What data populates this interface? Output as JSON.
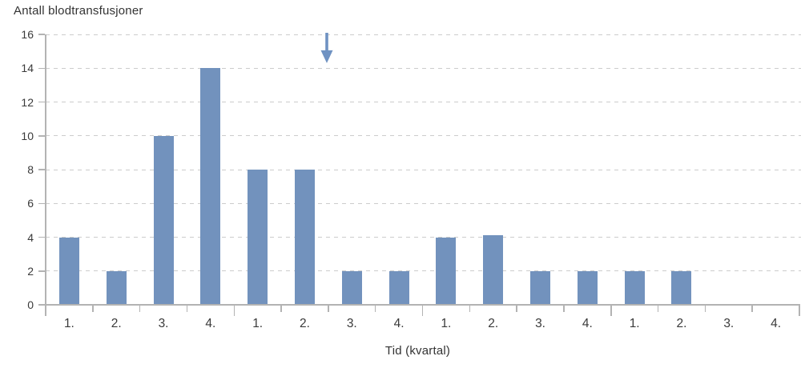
{
  "chart_data": {
    "type": "bar",
    "title": "Antall blodtransfusjoner",
    "xlabel": "Tid (kvartal)",
    "ylabel": "Antall blodtransfusjoner",
    "categories": [
      "1.",
      "2.",
      "3.",
      "4.",
      "1.",
      "2.",
      "3.",
      "4.",
      "1.",
      "2.",
      "3.",
      "4.",
      "1.",
      "2.",
      "3.",
      "4."
    ],
    "values": [
      4,
      2,
      10,
      14,
      8,
      8,
      2,
      2,
      4,
      4.1,
      2,
      2,
      2,
      2,
      null,
      null
    ],
    "ylim": [
      0,
      16
    ],
    "yticks": [
      0,
      2,
      4,
      6,
      8,
      10,
      12,
      14,
      16
    ],
    "grid": "horizontal-dashed",
    "legend_position": "none",
    "x_axis": {
      "boundary_tick_count": 17,
      "long_tick_every": 4,
      "note": "longer ticks mark year boundaries every 4 quarters"
    },
    "annotation": {
      "type": "down-arrow",
      "after_category_index": 6,
      "y_top_value": 16,
      "y_tip_value": 14.3,
      "description": "blue arrow pointing down at boundary between 2. and 3. quarter of year 2"
    },
    "colors": {
      "bar": "#7292bd",
      "arrow": "#6f92c2",
      "gridline": "#cccccc",
      "axis": "#b3b3b3",
      "text": "#3a3a3a"
    }
  }
}
